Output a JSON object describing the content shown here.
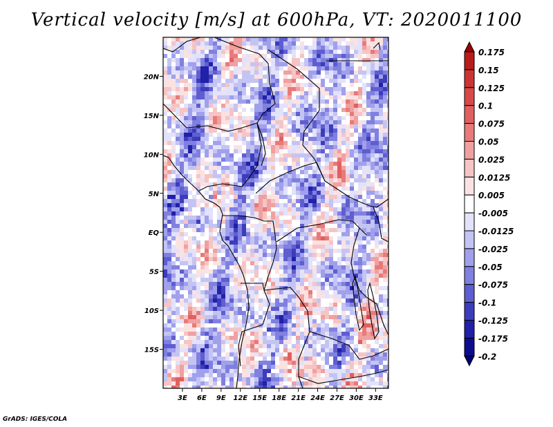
{
  "title": "Vertical velocity [m/s] at 600hPa, VT: 2020011100",
  "credit": "GrADS: IGES/COLA",
  "variable": "Vertical velocity",
  "units": "m/s",
  "level": "600hPa",
  "valid_time": "2020011100",
  "map": {
    "lon_range": [
      0,
      35
    ],
    "lat_range": [
      -20,
      25
    ],
    "lat_ticks": [
      {
        "value": 20,
        "label": "20N"
      },
      {
        "value": 15,
        "label": "15N"
      },
      {
        "value": 10,
        "label": "10N"
      },
      {
        "value": 5,
        "label": "5N"
      },
      {
        "value": 0,
        "label": "EQ"
      },
      {
        "value": -5,
        "label": "5S"
      },
      {
        "value": -10,
        "label": "10S"
      },
      {
        "value": -15,
        "label": "15S"
      }
    ],
    "lon_ticks": [
      {
        "value": 3,
        "label": "3E"
      },
      {
        "value": 6,
        "label": "6E"
      },
      {
        "value": 9,
        "label": "9E"
      },
      {
        "value": 12,
        "label": "12E"
      },
      {
        "value": 15,
        "label": "15E"
      },
      {
        "value": 18,
        "label": "18E"
      },
      {
        "value": 21,
        "label": "21E"
      },
      {
        "value": 24,
        "label": "24E"
      },
      {
        "value": 27,
        "label": "27E"
      },
      {
        "value": 30,
        "label": "30E"
      },
      {
        "value": 33,
        "label": "33E"
      }
    ]
  },
  "colorbar": {
    "levels": [
      "0.175",
      "0.15",
      "0.125",
      "0.1",
      "0.075",
      "0.05",
      "0.025",
      "0.0125",
      "0.005",
      "-0.005",
      "-0.0125",
      "-0.025",
      "-0.05",
      "-0.075",
      "-0.1",
      "-0.125",
      "-0.175",
      "-0.2"
    ],
    "colors": [
      "#a00000",
      "#b81c1c",
      "#cc3333",
      "#d94848",
      "#e06060",
      "#e87a7a",
      "#f0a0a0",
      "#f6c4c4",
      "#fbe2e2",
      "#ffffff",
      "#e2e2fb",
      "#c4c4f4",
      "#a0a0ec",
      "#8080e0",
      "#5e5ed0",
      "#3c3cbc",
      "#2020a8",
      "#0c0c90",
      "#000078"
    ]
  }
}
